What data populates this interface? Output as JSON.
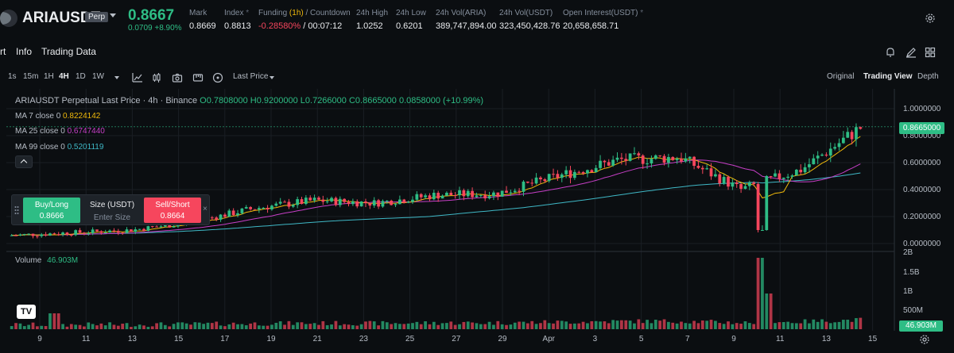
{
  "header": {
    "symbol": "ARIAUSDT",
    "badge": "Perp",
    "last_price": "0.8667",
    "change": "0.0709 +8.90%",
    "stats": {
      "mark_label": "Mark",
      "mark_value": "0.8669",
      "index_label": "Index",
      "index_value": "0.8813",
      "funding_label": "Funding",
      "funding_interval": "(1h)",
      "funding_sep": " / Countdown",
      "funding_rate": "-0.28580%",
      "countdown": " / 00:07:12",
      "high_label": "24h High",
      "high_value": "1.0252",
      "low_label": "24h Low",
      "low_value": "0.6201",
      "vol_aria_label": "24h Vol(ARIA)",
      "vol_aria_value": "389,747,894.00",
      "vol_usdt_label": "24h Vol(USDT)",
      "vol_usdt_value": "323,450,428.76",
      "oi_label": "Open Interest(USDT)",
      "oi_value": "20,658,658.71"
    }
  },
  "tabs": {
    "chart": "rt",
    "info": "Info",
    "trading_data": "Trading Data"
  },
  "toolbar": {
    "timeframes": [
      "1s",
      "15m",
      "1H",
      "4H",
      "1D",
      "1W"
    ],
    "price_type": "Last Price",
    "views": {
      "original": "Original",
      "trading_view": "Trading View",
      "depth": "Depth"
    }
  },
  "legend": {
    "title": "ARIAUSDT Perpetual Last Price · 4h · Binance",
    "o": "O0.7808000",
    "h": "H0.9200000",
    "l": "L0.7266000",
    "c": "C0.8665000",
    "chg": "0.0858000 (+10.99%)",
    "ma7_label": "MA 7 close 0",
    "ma7_value": "0.8224142",
    "ma25_label": "MA 25 close 0",
    "ma25_value": "0.6747440",
    "ma99_label": "MA 99 close 0",
    "ma99_value": "0.5201119"
  },
  "order_panel": {
    "buy_label": "Buy/Long",
    "buy_price": "0.8666",
    "size_label": "Size (USDT)",
    "size_placeholder": "Enter Size",
    "sell_label": "Sell/Short",
    "sell_price": "0.8664",
    "close_glyph": "×"
  },
  "price_axis": {
    "ticks": [
      "1.0000000",
      "0.8000000",
      "0.6000000",
      "0.4000000",
      "0.2000000",
      "0.0000000"
    ],
    "current_price": "0.8665000"
  },
  "volume": {
    "label": "Volume",
    "value": "46.903M",
    "ticks": [
      "2B",
      "1.5B",
      "1B",
      "500M"
    ],
    "current": "46.903M"
  },
  "time_axis": [
    "9",
    "11",
    "13",
    "15",
    "17",
    "19",
    "21",
    "23",
    "25",
    "27",
    "29",
    "Apr",
    "3",
    "5",
    "7",
    "9",
    "11",
    "13",
    "15"
  ],
  "colors": {
    "up": "#2ebd85",
    "down": "#f6465d",
    "ma7": "#f0b90b",
    "ma25": "#c63fc6",
    "ma99": "#3fb8c6",
    "bg": "#0b0e11"
  },
  "chart_data": {
    "type": "candlestick",
    "timeframe": "4h",
    "ylim": [
      0,
      1.0
    ],
    "close_series_key_points": [
      {
        "x": "9",
        "y": 0.06
      },
      {
        "x": "13",
        "y": 0.08
      },
      {
        "x": "17",
        "y": 0.1
      },
      {
        "x": "21",
        "y": 0.16
      },
      {
        "x": "23",
        "y": 0.26
      },
      {
        "x": "25",
        "y": 0.32
      },
      {
        "x": "27",
        "y": 0.3
      },
      {
        "x": "29",
        "y": 0.36
      },
      {
        "x": "Apr",
        "y": 0.37
      },
      {
        "x": "3",
        "y": 0.5
      },
      {
        "x": "5",
        "y": 0.62
      },
      {
        "x": "7",
        "y": 0.64
      },
      {
        "x": "9",
        "y": 0.4
      },
      {
        "x": "11",
        "y": 0.55
      },
      {
        "x": "13",
        "y": 0.87
      }
    ]
  }
}
